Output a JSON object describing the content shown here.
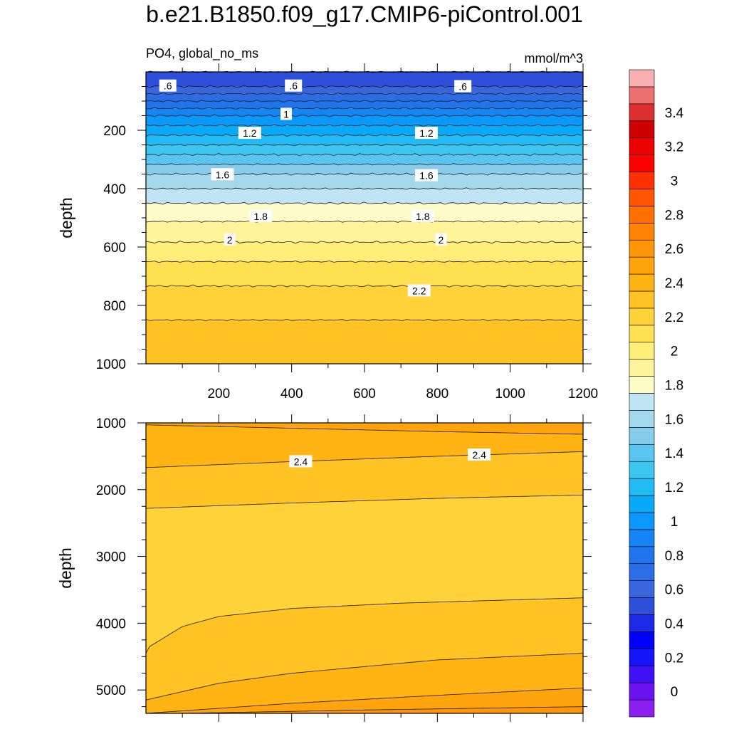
{
  "title": "b.e21.B1850.f09_g17.CMIP6-piControl.001",
  "colorbar": {
    "levels": [
      -0.1,
      0,
      0.1,
      0.2,
      0.3,
      0.4,
      0.5,
      0.6,
      0.7,
      0.8,
      0.9,
      1.0,
      1.1,
      1.2,
      1.3,
      1.4,
      1.5,
      1.6,
      1.7,
      1.8,
      1.9,
      2.0,
      2.1,
      2.2,
      2.3,
      2.4,
      2.5,
      2.6,
      2.7,
      2.8,
      2.9,
      3.0,
      3.1,
      3.2,
      3.3,
      3.4,
      3.5,
      3.6
    ],
    "colors": [
      "#8c1ff0",
      "#6a12f2",
      "#3e12f5",
      "#1414fa",
      "#0000ff",
      "#1c2ae8",
      "#2e4fd9",
      "#3a66dc",
      "#2c6ce4",
      "#2075ec",
      "#1584f4",
      "#0a98fa",
      "#08aaf8",
      "#22baf2",
      "#3cc6f0",
      "#5ac6f0",
      "#86cdec",
      "#a4d8ec",
      "#bfe4f4",
      "#fffcc8",
      "#fff49a",
      "#ffee78",
      "#ffe050",
      "#ffd23a",
      "#ffc424",
      "#ffb414",
      "#ffa40c",
      "#ff9608",
      "#ff8404",
      "#ff7000",
      "#ff5400",
      "#ff3000",
      "#ff0000",
      "#ec0000",
      "#d00000",
      "#dc3030",
      "#ec7070",
      "#f8b0b0"
    ],
    "labels": [
      "0",
      "0.2",
      "0.4",
      "0.6",
      "0.8",
      "1",
      "1.2",
      "1.4",
      "1.6",
      "1.8",
      "2",
      "2.2",
      "2.4",
      "2.6",
      "2.8",
      "3",
      "3.2",
      "3.4"
    ],
    "label_values": [
      0,
      0.2,
      0.4,
      0.6,
      0.8,
      1.0,
      1.2,
      1.4,
      1.6,
      1.8,
      2.0,
      2.2,
      2.4,
      2.6,
      2.8,
      3.0,
      3.2,
      3.4
    ]
  },
  "chart_data": [
    {
      "type": "contour",
      "panel": "upper",
      "left_subtitle": "PO4, global_no_ms",
      "right_subtitle": "mmol/m^3",
      "xlabel": "",
      "ylabel": "depth",
      "xlim": [
        0,
        1200
      ],
      "ylim": [
        1000,
        0
      ],
      "xticks": [
        200,
        400,
        600,
        800,
        1000,
        1200
      ],
      "yticks": [
        200,
        400,
        600,
        800,
        1000
      ],
      "contour_interval": 0.1,
      "profile": {
        "depth": [
          0,
          50,
          100,
          150,
          200,
          250,
          300,
          350,
          400,
          450,
          500,
          550,
          600,
          650,
          700,
          750,
          800,
          850,
          900,
          950,
          1000
        ],
        "po4": [
          0.5,
          0.6,
          0.8,
          1.0,
          1.15,
          1.3,
          1.45,
          1.6,
          1.7,
          1.8,
          1.88,
          1.96,
          2.02,
          2.1,
          2.16,
          2.22,
          2.26,
          2.3,
          2.32,
          2.34,
          2.36
        ]
      },
      "contour_labels": [
        {
          "text": ".6",
          "x": 60,
          "depth": 48
        },
        {
          "text": ".6",
          "x": 405,
          "depth": 48
        },
        {
          "text": ".6",
          "x": 870,
          "depth": 50
        },
        {
          "text": "1",
          "x": 385,
          "depth": 145
        },
        {
          "text": "1.2",
          "x": 285,
          "depth": 210
        },
        {
          "text": "1.2",
          "x": 770,
          "depth": 210
        },
        {
          "text": "1.6",
          "x": 210,
          "depth": 352
        },
        {
          "text": "1.6",
          "x": 770,
          "depth": 355
        },
        {
          "text": "1.8",
          "x": 315,
          "depth": 495
        },
        {
          "text": "1.8",
          "x": 760,
          "depth": 495
        },
        {
          "text": "2",
          "x": 230,
          "depth": 575
        },
        {
          "text": "2",
          "x": 810,
          "depth": 575
        },
        {
          "text": "2.2",
          "x": 750,
          "depth": 750
        }
      ]
    },
    {
      "type": "contour",
      "panel": "lower",
      "xlabel": "",
      "ylabel": "depth",
      "xlim": [
        0,
        1200
      ],
      "ylim": [
        5350,
        1000
      ],
      "yticks": [
        1000,
        2000,
        3000,
        4000,
        5000
      ],
      "contour_lines": [
        {
          "value": 2.5,
          "x": [
            0,
            400,
            800,
            1200
          ],
          "depth": [
            1030,
            1080,
            1130,
            1170
          ]
        },
        {
          "value": 2.4,
          "x": [
            0,
            400,
            800,
            1200
          ],
          "depth": [
            1670,
            1580,
            1500,
            1430
          ]
        },
        {
          "value": 2.3,
          "x": [
            0,
            400,
            800,
            1200
          ],
          "depth": [
            2280,
            2200,
            2130,
            2080
          ]
        },
        {
          "value": 2.3,
          "x": [
            0,
            10,
            100,
            200,
            400,
            700,
            1200
          ],
          "depth": [
            4450,
            4350,
            4050,
            3900,
            3780,
            3700,
            3620
          ]
        },
        {
          "value": 2.4,
          "x": [
            0,
            200,
            400,
            800,
            1200
          ],
          "depth": [
            5150,
            4900,
            4750,
            4550,
            4450
          ]
        },
        {
          "value": 2.5,
          "x": [
            0,
            400,
            800,
            1200
          ],
          "depth": [
            5350,
            5200,
            5080,
            4970
          ]
        },
        {
          "value": 2.6,
          "x": [
            100,
            600,
            1200
          ],
          "depth": [
            5350,
            5300,
            5250
          ]
        }
      ],
      "band_values": [
        2.55,
        2.45,
        2.35,
        2.25,
        2.35,
        2.45,
        2.55,
        2.65
      ],
      "contour_labels": [
        {
          "text": "2.4",
          "x": 425,
          "depth": 1580
        },
        {
          "text": "2.4",
          "x": 915,
          "depth": 1480
        }
      ]
    }
  ]
}
